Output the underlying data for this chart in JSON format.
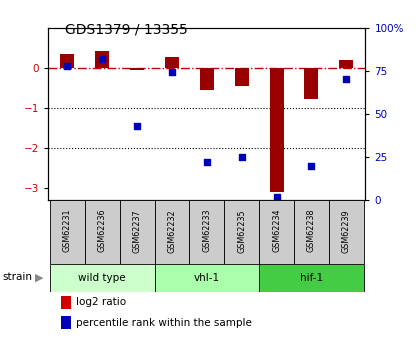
{
  "title": "GDS1379 / 13355",
  "samples": [
    "GSM62231",
    "GSM62236",
    "GSM62237",
    "GSM62232",
    "GSM62233",
    "GSM62235",
    "GSM62234",
    "GSM62238",
    "GSM62239"
  ],
  "log2_ratio": [
    0.35,
    0.42,
    -0.05,
    0.27,
    -0.55,
    -0.45,
    -3.1,
    -0.78,
    0.2
  ],
  "percentile_rank": [
    78,
    82,
    43,
    74,
    22,
    25,
    2,
    20,
    70
  ],
  "groups": [
    {
      "label": "wild type",
      "start": 0,
      "end": 3,
      "color": "#ccffcc"
    },
    {
      "label": "vhl-1",
      "start": 3,
      "end": 6,
      "color": "#aaffaa"
    },
    {
      "label": "hif-1",
      "start": 6,
      "end": 9,
      "color": "#44cc44"
    }
  ],
  "ylim_left": [
    -3.3,
    1.0
  ],
  "ylim_right": [
    0,
    100
  ],
  "yticks_left": [
    0,
    -1,
    -2,
    -3
  ],
  "yticks_right": [
    0,
    25,
    50,
    75,
    100
  ],
  "ytick_labels_right": [
    "0",
    "25",
    "50",
    "75",
    "100%"
  ],
  "bar_color": "#990000",
  "dot_color": "#0000bb",
  "hline_color": "#cc0000",
  "dotted_line_color": "#000000",
  "legend_log2_color": "#cc0000",
  "legend_pct_color": "#0000bb",
  "bg_color": "#ffffff"
}
